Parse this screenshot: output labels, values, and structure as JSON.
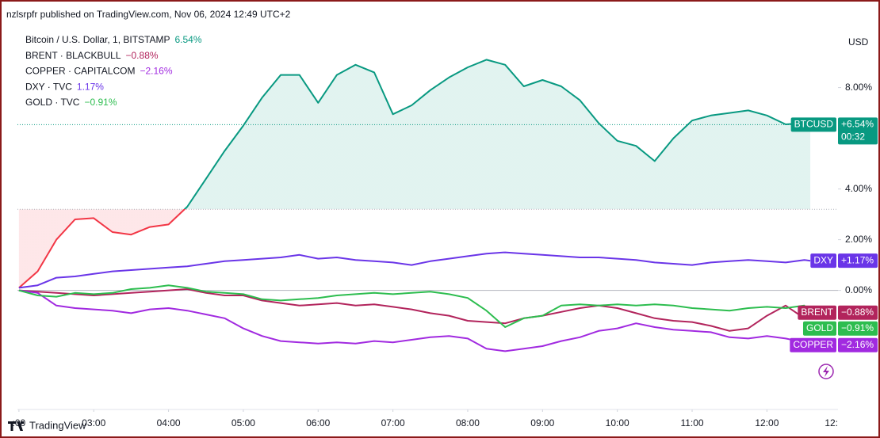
{
  "header": {
    "text": "nzlsrpfr published on TradingView.com, Nov 06, 2024 12:49 UTC+2"
  },
  "chart_data": {
    "type": "line",
    "currency": "USD",
    "countdown": "00:32",
    "x": [
      2,
      2.25,
      2.5,
      2.75,
      3,
      3.25,
      3.5,
      3.75,
      4,
      4.25,
      4.5,
      4.75,
      5,
      5.25,
      5.5,
      5.75,
      6,
      6.25,
      6.5,
      6.75,
      7,
      7.25,
      7.5,
      7.75,
      8,
      8.25,
      8.5,
      8.75,
      9,
      9.25,
      9.5,
      9.75,
      10,
      10.25,
      10.5,
      10.75,
      11,
      11.25,
      11.5,
      11.75,
      12,
      12.25,
      12.5,
      12.58
    ],
    "xlim": [
      1.98,
      12.95
    ],
    "xticks": [
      {
        "value": 2,
        "label": ":00"
      },
      {
        "value": 3,
        "label": "03:00"
      },
      {
        "value": 4,
        "label": "04:00"
      },
      {
        "value": 5,
        "label": "05:00"
      },
      {
        "value": 6,
        "label": "06:00"
      },
      {
        "value": 7,
        "label": "07:00"
      },
      {
        "value": 8,
        "label": "08:00"
      },
      {
        "value": 9,
        "label": "09:00"
      },
      {
        "value": 10,
        "label": "10:00"
      },
      {
        "value": 11,
        "label": "11:00"
      },
      {
        "value": 12,
        "label": "12:00"
      },
      {
        "value": 13,
        "label": "12:"
      }
    ],
    "ylim": [
      -4.7,
      10.3
    ],
    "yticks": [
      {
        "value": 0,
        "label": "0.00%"
      },
      {
        "value": 2,
        "label": "2.00%"
      },
      {
        "value": 4,
        "label": "4.00%"
      },
      {
        "value": 8,
        "label": "8.00%"
      }
    ],
    "grid": false,
    "reference_line": 0,
    "baseline": 3.2,
    "series": [
      {
        "name": "Bitcoin / U.S. Dollar, 1, BITSTAMP",
        "symbol": "BTCUSD",
        "change_label": "6.54%",
        "tag_label": "+6.54%",
        "color": "#089981",
        "color_below": "#f23645",
        "values": [
          0.1,
          0.75,
          2.0,
          2.8,
          2.85,
          2.3,
          2.2,
          2.5,
          2.6,
          3.3,
          4.4,
          5.5,
          6.5,
          7.6,
          8.5,
          8.5,
          7.4,
          8.5,
          8.9,
          8.6,
          6.95,
          7.3,
          7.9,
          8.4,
          8.8,
          9.1,
          8.9,
          8.05,
          8.3,
          8.05,
          7.5,
          6.6,
          5.9,
          5.7,
          5.1,
          6.0,
          6.7,
          6.9,
          7.0,
          7.1,
          6.9,
          6.55,
          6.6,
          6.54
        ]
      },
      {
        "name": "BRENT · BLACKBULL",
        "symbol": "BRENT",
        "change_label": "−0.88%",
        "tag_label": "−0.88%",
        "color": "#b2245c",
        "values": [
          0,
          -0.05,
          -0.1,
          -0.15,
          -0.2,
          -0.15,
          -0.1,
          -0.05,
          0,
          0.05,
          -0.1,
          -0.2,
          -0.2,
          -0.4,
          -0.5,
          -0.6,
          -0.55,
          -0.5,
          -0.6,
          -0.55,
          -0.65,
          -0.75,
          -0.9,
          -1.0,
          -1.2,
          -1.25,
          -1.3,
          -1.1,
          -1.0,
          -0.85,
          -0.7,
          -0.6,
          -0.7,
          -0.9,
          -1.1,
          -1.2,
          -1.25,
          -1.4,
          -1.6,
          -1.5,
          -1.0,
          -0.6,
          -1.1,
          -0.88
        ]
      },
      {
        "name": "COPPER · CAPITALCOM",
        "symbol": "COPPER",
        "change_label": "−2.16%",
        "tag_label": "−2.16%",
        "color": "#a12ae0",
        "values": [
          0,
          -0.1,
          -0.6,
          -0.7,
          -0.75,
          -0.8,
          -0.9,
          -0.75,
          -0.7,
          -0.8,
          -0.95,
          -1.1,
          -1.5,
          -1.8,
          -2.0,
          -2.05,
          -2.1,
          -2.05,
          -2.1,
          -2.0,
          -2.05,
          -1.95,
          -1.85,
          -1.8,
          -1.9,
          -2.3,
          -2.4,
          -2.3,
          -2.2,
          -2.0,
          -1.85,
          -1.6,
          -1.5,
          -1.3,
          -1.45,
          -1.55,
          -1.6,
          -1.65,
          -1.85,
          -1.9,
          -1.8,
          -1.9,
          -2.05,
          -2.16
        ]
      },
      {
        "name": "DXY · TVC",
        "symbol": "DXY",
        "change_label": "1.17%",
        "tag_label": "+1.17%",
        "color": "#6a35e8",
        "values": [
          0.1,
          0.2,
          0.5,
          0.55,
          0.65,
          0.75,
          0.8,
          0.85,
          0.9,
          0.95,
          1.05,
          1.15,
          1.2,
          1.25,
          1.3,
          1.4,
          1.25,
          1.3,
          1.2,
          1.15,
          1.1,
          1.0,
          1.15,
          1.25,
          1.35,
          1.45,
          1.5,
          1.45,
          1.4,
          1.35,
          1.3,
          1.3,
          1.25,
          1.2,
          1.1,
          1.05,
          1.0,
          1.1,
          1.15,
          1.2,
          1.15,
          1.1,
          1.2,
          1.17
        ]
      },
      {
        "name": "GOLD · TVC",
        "symbol": "GOLD",
        "change_label": "−0.91%",
        "tag_label": "−0.91%",
        "color": "#2dbd4f",
        "values": [
          0,
          -0.2,
          -0.25,
          -0.1,
          -0.15,
          -0.1,
          0.05,
          0.1,
          0.2,
          0.1,
          -0.05,
          -0.1,
          -0.15,
          -0.35,
          -0.4,
          -0.35,
          -0.3,
          -0.2,
          -0.15,
          -0.1,
          -0.15,
          -0.1,
          -0.05,
          -0.15,
          -0.3,
          -0.8,
          -1.45,
          -1.1,
          -1.0,
          -0.6,
          -0.55,
          -0.6,
          -0.55,
          -0.6,
          -0.55,
          -0.6,
          -0.7,
          -0.75,
          -0.8,
          -0.7,
          -0.65,
          -0.7,
          -0.6,
          -0.91
        ]
      }
    ]
  },
  "footer": {
    "brand": "TradingView"
  }
}
